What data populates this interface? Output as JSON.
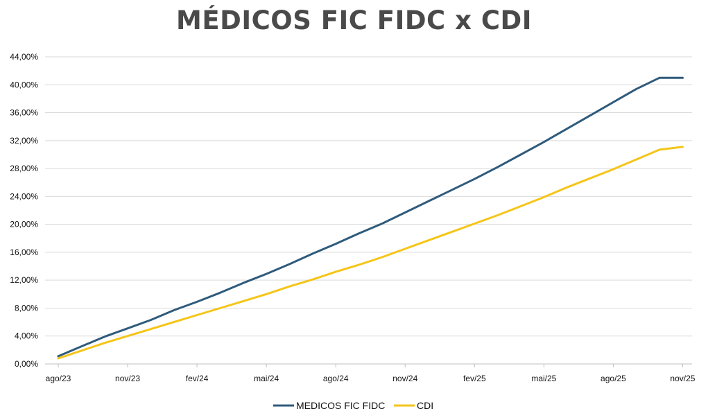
{
  "chart_data": {
    "type": "line",
    "title": "MÉDICOS FIC FIDC x CDI",
    "xlabel": "",
    "ylabel": "",
    "x": [
      "ago/23",
      "set/23",
      "out/23",
      "nov/23",
      "dez/23",
      "jan/24",
      "fev/24",
      "mar/24",
      "abr/24",
      "mai/24",
      "jun/24",
      "jul/24",
      "ago/24",
      "set/24",
      "out/24",
      "nov/24",
      "dez/24",
      "jan/25",
      "fev/25",
      "mar/25",
      "abr/25",
      "mai/25",
      "jun/25",
      "jul/25",
      "ago/25",
      "set/25",
      "out/25",
      "nov/25"
    ],
    "x_tick_labels": [
      "ago/23",
      "nov/23",
      "fev/24",
      "mai/24",
      "ago/24",
      "nov/24",
      "fev/25",
      "mai/25",
      "ago/25",
      "nov/25"
    ],
    "y_tick_labels": [
      "0,00%",
      "4,00%",
      "8,00%",
      "12,00%",
      "16,00%",
      "20,00%",
      "24,00%",
      "28,00%",
      "32,00%",
      "36,00%",
      "40,00%",
      "44,00%"
    ],
    "ylim": [
      0,
      44
    ],
    "y_unit": "%",
    "grid": "horizontal",
    "legend_position": "bottom-center",
    "series": [
      {
        "name": "MEDICOS FIC FIDC",
        "color": "#2f5b7c",
        "values": [
          1.1,
          2.5,
          3.9,
          5.1,
          6.3,
          7.7,
          8.9,
          10.2,
          11.6,
          12.9,
          14.3,
          15.8,
          17.2,
          18.7,
          20.1,
          21.7,
          23.3,
          24.9,
          26.5,
          28.2,
          30.0,
          31.8,
          33.7,
          35.6,
          37.5,
          39.4,
          41.0,
          41.0
        ]
      },
      {
        "name": "CDI",
        "color": "#f5c518",
        "values": [
          0.8,
          1.9,
          3.0,
          4.0,
          5.0,
          6.0,
          7.0,
          8.0,
          9.0,
          10.0,
          11.1,
          12.1,
          13.2,
          14.2,
          15.3,
          16.5,
          17.7,
          18.9,
          20.1,
          21.3,
          22.6,
          23.9,
          25.3,
          26.6,
          27.9,
          29.3,
          30.7,
          31.1
        ]
      }
    ]
  }
}
